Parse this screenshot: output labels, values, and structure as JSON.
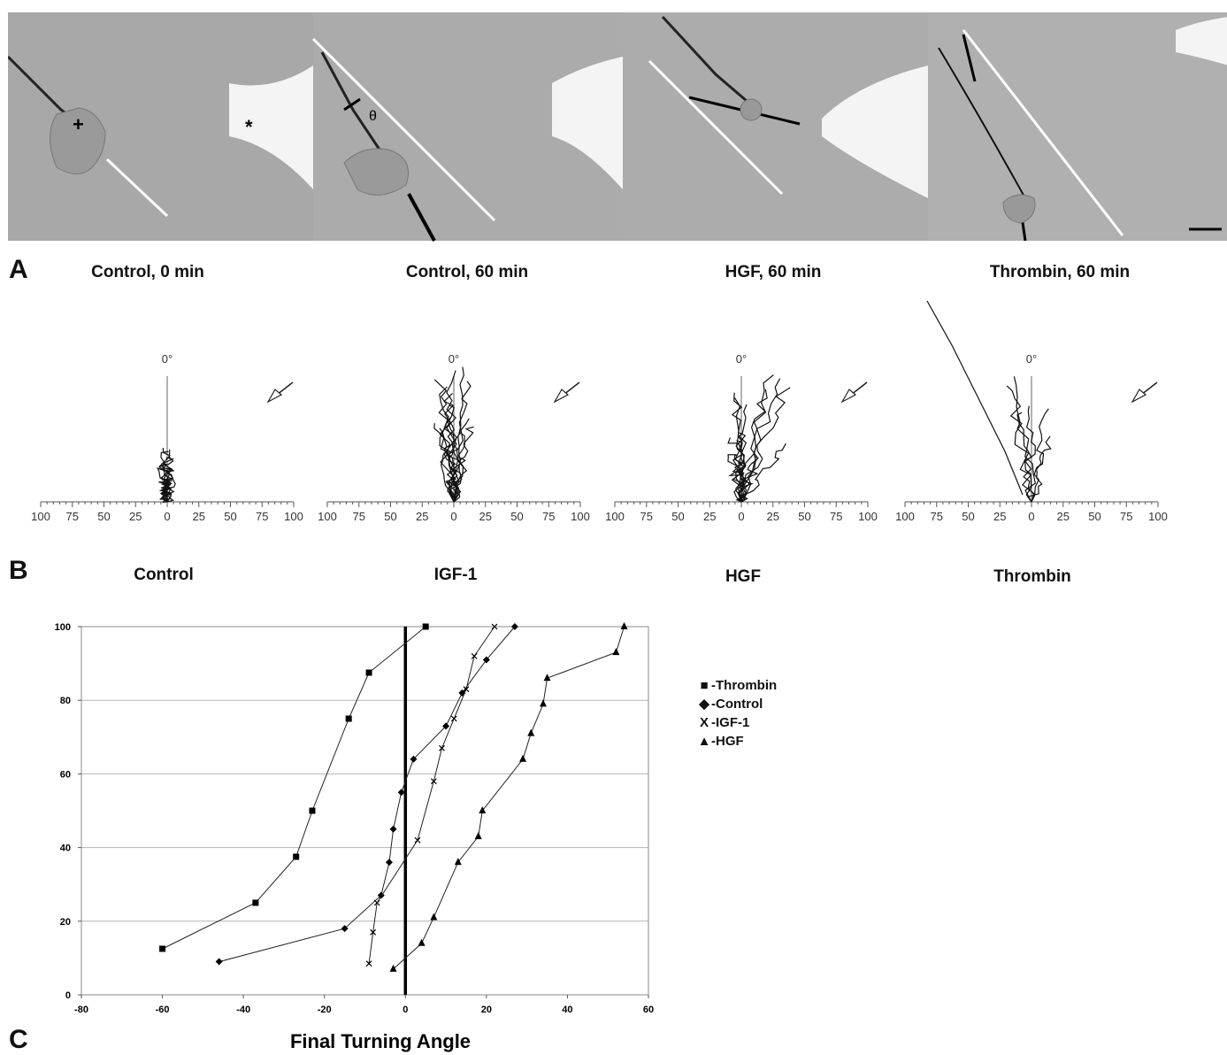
{
  "panel_labels": {
    "a": "A",
    "b": "B",
    "c": "C"
  },
  "micrographs": {
    "captions": [
      "Control, 0 min",
      "Control, 60 min",
      "HGF, 60 min",
      "Thrombin, 60 min"
    ],
    "markers": {
      "plus": "+",
      "star": "*",
      "theta": "θ"
    }
  },
  "tracks": {
    "zero_label": "0°",
    "tick_labels": [
      "100",
      "75",
      "50",
      "25",
      "0",
      "25",
      "50",
      "75",
      "100"
    ],
    "captions": [
      "Control",
      "IGF-1",
      "HGF",
      "Thrombin"
    ],
    "arrow_icon": "arrow-down-left-icon"
  },
  "chart_data": {
    "type": "scatter",
    "title": "",
    "xlabel": "Final Turning Angle",
    "ylabel": "",
    "xlim": [
      -80,
      60
    ],
    "ylim": [
      0,
      100
    ],
    "x_ticks": [
      "-80",
      "-60",
      "-40",
      "-20",
      "0",
      "20",
      "40",
      "60"
    ],
    "y_ticks": [
      "0",
      "20",
      "40",
      "60",
      "80",
      "100"
    ],
    "grid": "horizontal",
    "legend_position": "right",
    "series": [
      {
        "name": "-Thrombin",
        "marker": "square",
        "points": [
          [
            -60,
            12.5
          ],
          [
            -37,
            25
          ],
          [
            -27,
            37.5
          ],
          [
            -23,
            50
          ],
          [
            -14,
            75
          ],
          [
            -9,
            87.5
          ],
          [
            5,
            100
          ]
        ]
      },
      {
        "name": "-Control",
        "marker": "diamond",
        "points": [
          [
            -46,
            9
          ],
          [
            -15,
            18
          ],
          [
            -6,
            27
          ],
          [
            -4,
            36
          ],
          [
            -3,
            45
          ],
          [
            -1,
            55
          ],
          [
            2,
            64
          ],
          [
            10,
            73
          ],
          [
            14,
            82
          ],
          [
            20,
            91
          ],
          [
            27,
            100
          ]
        ]
      },
      {
        "name": "-IGF-1",
        "marker": "x",
        "points": [
          [
            -9,
            8.5
          ],
          [
            -8,
            17
          ],
          [
            -7,
            25
          ],
          [
            3,
            42
          ],
          [
            7,
            58
          ],
          [
            9,
            67
          ],
          [
            12,
            75
          ],
          [
            15,
            83
          ],
          [
            17,
            92
          ],
          [
            22,
            100
          ]
        ]
      },
      {
        "name": "-HGF",
        "marker": "triangle",
        "points": [
          [
            -3,
            7
          ],
          [
            4,
            14
          ],
          [
            7,
            21
          ],
          [
            13,
            36
          ],
          [
            18,
            43
          ],
          [
            19,
            50
          ],
          [
            29,
            64
          ],
          [
            31,
            71
          ],
          [
            34,
            79
          ],
          [
            35,
            86
          ],
          [
            52,
            93
          ],
          [
            54,
            100
          ]
        ]
      }
    ]
  }
}
